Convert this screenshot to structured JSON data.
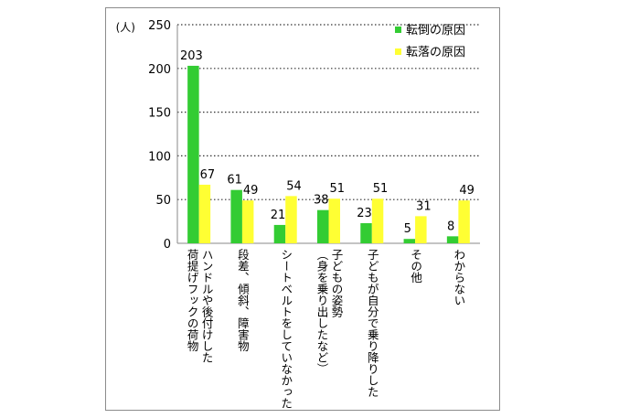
{
  "chart_data": {
    "type": "bar",
    "unit_label": "(人)",
    "ylim": [
      0,
      250
    ],
    "yticks": [
      0,
      50,
      100,
      150,
      200,
      250
    ],
    "grid": "horizontal dotted",
    "legend_position": "top-right",
    "categories": [
      "ハンドルや後付けした\n荷提げフックの荷物",
      "段差、傾斜、障害物",
      "シートベルトをしていなかった",
      "子どもの姿勢\n（身を乗り出したなど）",
      "子どもが自分で乗り降りした",
      "その他",
      "わからない"
    ],
    "series": [
      {
        "name": "転倒の原因",
        "color": "#33cc33",
        "values": [
          203,
          61,
          21,
          38,
          23,
          5,
          8
        ]
      },
      {
        "name": "転落の原因",
        "color": "#ffff33",
        "values": [
          67,
          49,
          54,
          51,
          51,
          31,
          49
        ]
      }
    ]
  }
}
